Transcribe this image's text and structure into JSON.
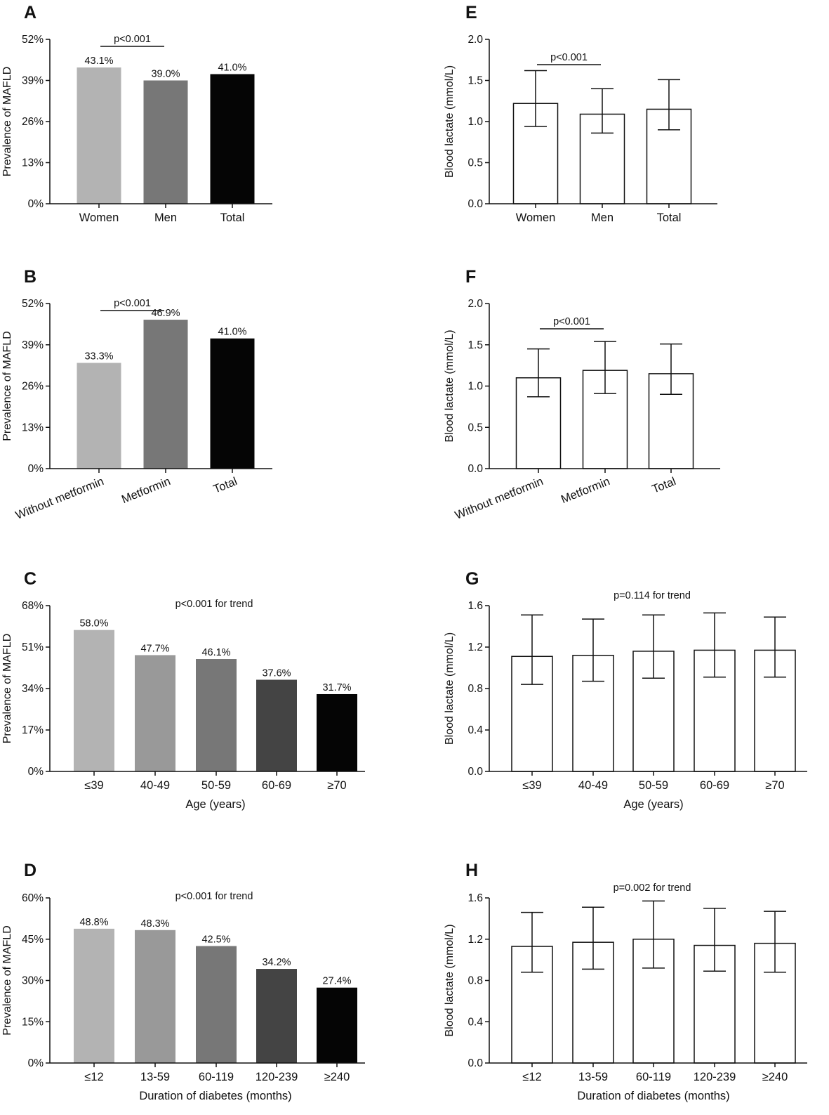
{
  "figure": {
    "panels": [
      "A",
      "E",
      "B",
      "F",
      "C",
      "G",
      "D",
      "H"
    ]
  },
  "chart_data": [
    {
      "panel": "A",
      "type": "bar",
      "categories": [
        "Women",
        "Men",
        "Total"
      ],
      "values": [
        43.1,
        39.0,
        41.0
      ],
      "value_labels": [
        "43.1%",
        "39.0%",
        "41.0%"
      ],
      "bar_colors": [
        "#b3b3b3",
        "#777777",
        "#050505"
      ],
      "ylabel": "Prevalence of MAFLD",
      "xlabel": "",
      "ylim": [
        0,
        52
      ],
      "yticks": [
        0,
        13,
        26,
        39,
        52
      ],
      "ytick_labels": [
        "0%",
        "13%",
        "26%",
        "39%",
        "52%"
      ],
      "annotation": {
        "text": "p<0.001",
        "from": 0,
        "to": 1
      }
    },
    {
      "panel": "E",
      "type": "bar",
      "categories": [
        "Women",
        "Men",
        "Total"
      ],
      "values": [
        1.22,
        1.09,
        1.15
      ],
      "error_upper": [
        1.62,
        1.4,
        1.51
      ],
      "error_lower": [
        0.94,
        0.86,
        0.9
      ],
      "ylabel": "Blood lactate (mmol/L)",
      "xlabel": "",
      "ylim": [
        0,
        2.0
      ],
      "yticks": [
        0,
        0.5,
        1.0,
        1.5,
        2.0
      ],
      "ytick_labels": [
        "0.0",
        "0.5",
        "1.0",
        "1.5",
        "2.0"
      ],
      "annotation": {
        "text": "p<0.001",
        "from": 0,
        "to": 1
      }
    },
    {
      "panel": "B",
      "type": "bar",
      "categories": [
        "Without metformin",
        "Metformin",
        "Total"
      ],
      "values": [
        33.3,
        46.9,
        41.0
      ],
      "value_labels": [
        "33.3%",
        "46.9%",
        "41.0%"
      ],
      "bar_colors": [
        "#b3b3b3",
        "#777777",
        "#050505"
      ],
      "ylabel": "Prevalence of MAFLD",
      "xlabel": "",
      "ylim": [
        0,
        52
      ],
      "yticks": [
        0,
        13,
        26,
        39,
        52
      ],
      "ytick_labels": [
        "0%",
        "13%",
        "26%",
        "39%",
        "52%"
      ],
      "rotate_labels": true,
      "annotation": {
        "text": "p<0.001",
        "from": 0,
        "to": 1
      }
    },
    {
      "panel": "F",
      "type": "bar",
      "categories": [
        "Without metformin",
        "Metformin",
        "Total"
      ],
      "values": [
        1.1,
        1.19,
        1.15
      ],
      "error_upper": [
        1.45,
        1.54,
        1.51
      ],
      "error_lower": [
        0.87,
        0.91,
        0.9
      ],
      "ylabel": "Blood lactate (mmol/L)",
      "xlabel": "",
      "ylim": [
        0,
        2.0
      ],
      "yticks": [
        0,
        0.5,
        1.0,
        1.5,
        2.0
      ],
      "ytick_labels": [
        "0.0",
        "0.5",
        "1.0",
        "1.5",
        "2.0"
      ],
      "rotate_labels": true,
      "annotation": {
        "text": "p<0.001",
        "from": 0,
        "to": 1
      }
    },
    {
      "panel": "C",
      "type": "bar",
      "categories": [
        "≤39",
        "40-49",
        "50-59",
        "60-69",
        "≥70"
      ],
      "values": [
        58.0,
        47.7,
        46.1,
        37.6,
        31.7
      ],
      "value_labels": [
        "58.0%",
        "47.7%",
        "46.1%",
        "37.6%",
        "31.7%"
      ],
      "bar_colors": [
        "#b3b3b3",
        "#999999",
        "#777777",
        "#444444",
        "#050505"
      ],
      "ylabel": "Prevalence of MAFLD",
      "xlabel": "Age (years)",
      "ylim": [
        0,
        68
      ],
      "yticks": [
        0,
        17,
        34,
        51,
        68
      ],
      "ytick_labels": [
        "0%",
        "17%",
        "34%",
        "51%",
        "68%"
      ],
      "trend_text": "p<0.001 for trend"
    },
    {
      "panel": "G",
      "type": "bar",
      "categories": [
        "≤39",
        "40-49",
        "50-59",
        "60-69",
        "≥70"
      ],
      "values": [
        1.11,
        1.12,
        1.16,
        1.17,
        1.17
      ],
      "error_upper": [
        1.51,
        1.47,
        1.51,
        1.53,
        1.49
      ],
      "error_lower": [
        0.84,
        0.87,
        0.9,
        0.91,
        0.91
      ],
      "ylabel": "Blood lactate (mmol/L)",
      "xlabel": "Age (years)",
      "ylim": [
        0,
        1.6
      ],
      "yticks": [
        0,
        0.4,
        0.8,
        1.2,
        1.6
      ],
      "ytick_labels": [
        "0.0",
        "0.4",
        "0.8",
        "1.2",
        "1.6"
      ],
      "trend_text": "p=0.114 for trend"
    },
    {
      "panel": "D",
      "type": "bar",
      "categories": [
        "≤12",
        "13-59",
        "60-119",
        "120-239",
        "≥240"
      ],
      "values": [
        48.8,
        48.3,
        42.5,
        34.2,
        27.4
      ],
      "value_labels": [
        "48.8%",
        "48.3%",
        "42.5%",
        "34.2%",
        "27.4%"
      ],
      "bar_colors": [
        "#b3b3b3",
        "#999999",
        "#777777",
        "#444444",
        "#050505"
      ],
      "ylabel": "Prevalence of MAFLD",
      "xlabel": "Duration of diabetes (months)",
      "ylim": [
        0,
        60
      ],
      "yticks": [
        0,
        15,
        30,
        45,
        60
      ],
      "ytick_labels": [
        "0%",
        "15%",
        "30%",
        "45%",
        "60%"
      ],
      "trend_text": "p<0.001 for trend"
    },
    {
      "panel": "H",
      "type": "bar",
      "categories": [
        "≤12",
        "13-59",
        "60-119",
        "120-239",
        "≥240"
      ],
      "values": [
        1.13,
        1.17,
        1.2,
        1.14,
        1.16
      ],
      "error_upper": [
        1.46,
        1.51,
        1.57,
        1.5,
        1.47
      ],
      "error_lower": [
        0.88,
        0.91,
        0.92,
        0.89,
        0.88
      ],
      "ylabel": "Blood lactate (mmol/L)",
      "xlabel": "Duration of diabetes (months)",
      "ylim": [
        0,
        1.6
      ],
      "yticks": [
        0,
        0.4,
        0.8,
        1.2,
        1.6
      ],
      "ytick_labels": [
        "0.0",
        "0.4",
        "0.8",
        "1.2",
        "1.6"
      ],
      "trend_text": "p=0.002 for trend"
    }
  ]
}
